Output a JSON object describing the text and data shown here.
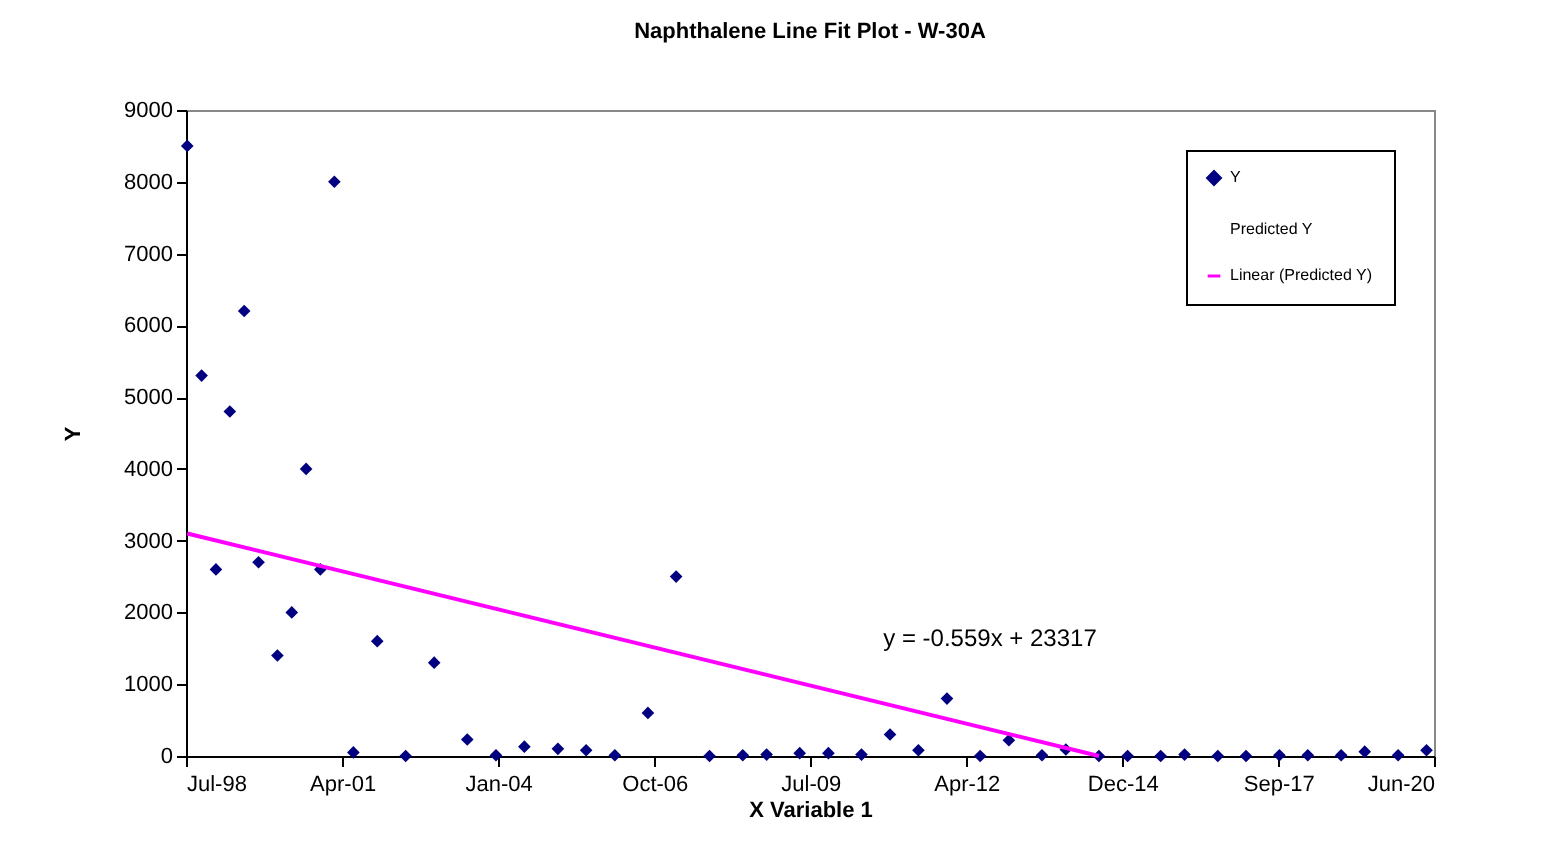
{
  "chart_data": {
    "type": "scatter",
    "title": "Naphthalene Line Fit Plot - W-30A",
    "xlabel": "X Variable 1",
    "ylabel": "Y",
    "x": [
      "1998-08",
      "1998-11",
      "1999-02",
      "1999-05",
      "1999-08",
      "1999-11",
      "2000-03",
      "2000-06",
      "2000-09",
      "2000-12",
      "2001-03",
      "2001-07",
      "2001-12",
      "2002-06",
      "2002-12",
      "2003-07",
      "2004-01",
      "2004-07",
      "2005-02",
      "2005-08",
      "2006-02",
      "2006-09",
      "2007-03",
      "2007-10",
      "2008-05",
      "2008-10",
      "2009-05",
      "2009-11",
      "2010-06",
      "2010-12",
      "2011-06",
      "2011-12",
      "2012-07",
      "2013-01",
      "2013-08",
      "2014-01",
      "2014-08",
      "2015-02",
      "2015-09",
      "2016-02",
      "2016-09",
      "2017-03",
      "2017-10",
      "2018-04",
      "2018-11",
      "2019-04",
      "2019-11",
      "2020-05"
    ],
    "series": [
      {
        "name": "Y",
        "marker": "diamond",
        "color": "#000080",
        "values": [
          8500,
          5300,
          2600,
          4800,
          6200,
          2700,
          1400,
          2000,
          4000,
          2600,
          8000,
          50,
          1600,
          0,
          1300,
          230,
          10,
          130,
          100,
          80,
          10,
          600,
          2500,
          0,
          10,
          20,
          40,
          40,
          20,
          300,
          80,
          800,
          0,
          220,
          10,
          90,
          0,
          0,
          0,
          20,
          0,
          0,
          10,
          10,
          10,
          60,
          10,
          80
        ]
      },
      {
        "name": "Predicted Y",
        "marker": "none",
        "values": [
          null,
          null,
          null,
          null,
          null,
          null,
          null,
          null,
          null,
          null,
          null,
          null,
          null,
          null,
          null,
          null,
          null,
          null,
          null,
          null,
          null,
          null,
          null,
          null,
          null,
          null,
          null,
          null,
          null,
          null,
          null,
          null,
          null,
          null,
          null,
          null,
          null,
          null,
          null,
          null,
          null,
          null,
          null,
          null,
          null,
          null,
          null,
          null
        ]
      },
      {
        "name": "Linear (Predicted Y)",
        "type": "line",
        "line_style": "solid",
        "color": "#ff00ff",
        "x": [
          "1998-08",
          "2014-08"
        ],
        "values": [
          3100,
          0
        ]
      }
    ],
    "xlim": [
      "1998-07-24",
      "2020-06-18"
    ],
    "xticks": [
      {
        "value": "1998-07-24",
        "label": "Jul-98"
      },
      {
        "value": "2001-04-20",
        "label": "Apr-01"
      },
      {
        "value": "2004-01-15",
        "label": "Jan-04"
      },
      {
        "value": "2006-10-12",
        "label": "Oct-06"
      },
      {
        "value": "2009-07-08",
        "label": "Jul-09"
      },
      {
        "value": "2012-04-03",
        "label": "Apr-12"
      },
      {
        "value": "2014-12-29",
        "label": "Dec-14"
      },
      {
        "value": "2017-09-24",
        "label": "Sep-17"
      },
      {
        "value": "2020-06-18",
        "label": "Jun-20"
      }
    ],
    "ylim": [
      0,
      9000
    ],
    "yticks": [
      0,
      1000,
      2000,
      3000,
      4000,
      5000,
      6000,
      7000,
      8000,
      9000
    ],
    "grid": false,
    "legend": "top right",
    "annotations": [
      "y = -0.559x + 23317"
    ]
  }
}
